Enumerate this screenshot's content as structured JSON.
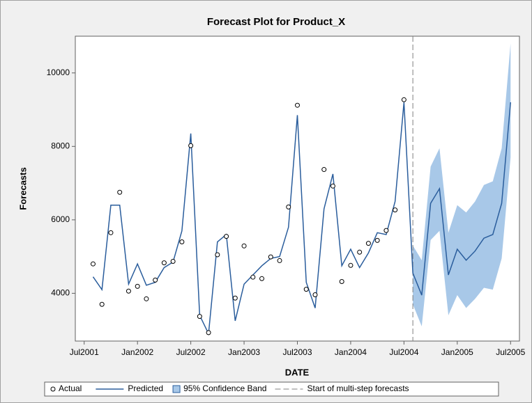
{
  "chart_data": {
    "type": "forecast",
    "title": "Forecast Plot for Product_X",
    "xlabel": "DATE",
    "ylabel": "Forecasts",
    "x": [
      "2001-08",
      "2001-09",
      "2001-10",
      "2001-11",
      "2001-12",
      "2002-01",
      "2002-02",
      "2002-03",
      "2002-04",
      "2002-05",
      "2002-06",
      "2002-07",
      "2002-08",
      "2002-09",
      "2002-10",
      "2002-11",
      "2002-12",
      "2003-01",
      "2003-02",
      "2003-03",
      "2003-04",
      "2003-05",
      "2003-06",
      "2003-07",
      "2003-08",
      "2003-09",
      "2003-10",
      "2003-11",
      "2003-12",
      "2004-01",
      "2004-02",
      "2004-03",
      "2004-04",
      "2004-05",
      "2004-06",
      "2004-07",
      "2004-08",
      "2004-09",
      "2004-10",
      "2004-11",
      "2004-12",
      "2005-01",
      "2005-02",
      "2005-03",
      "2005-04",
      "2005-05",
      "2005-06",
      "2005-07"
    ],
    "series": [
      {
        "name": "Actual",
        "color": "#000000",
        "values": [
          4800,
          3700,
          5650,
          6750,
          4060,
          4190,
          3850,
          4360,
          4830,
          4870,
          5400,
          8020,
          3370,
          2930,
          5050,
          5550,
          3870,
          5290,
          4440,
          4400,
          4990,
          4890,
          6350,
          9120,
          4110,
          3960,
          7370,
          6920,
          4320,
          4760,
          5120,
          5360,
          5440,
          5710,
          6270,
          9270,
          null,
          null,
          null,
          null,
          null,
          null,
          null,
          null,
          null,
          null,
          null,
          null
        ]
      },
      {
        "name": "Predicted",
        "color": "#2a5d9c",
        "values": [
          4450,
          4100,
          6400,
          6400,
          4250,
          4800,
          4220,
          4300,
          4700,
          4850,
          5700,
          8350,
          3400,
          2900,
          5400,
          5600,
          3250,
          4250,
          4500,
          4750,
          4950,
          5000,
          5800,
          8850,
          4300,
          3600,
          6300,
          7250,
          4750,
          5200,
          4700,
          5100,
          5650,
          5600,
          6500,
          9200,
          4550,
          3950,
          6450,
          6850,
          4500,
          5200,
          4900,
          5150,
          5500,
          5600,
          6450,
          9200
        ]
      },
      {
        "name": "95% Confidence Band",
        "color": "#a8c8e8",
        "lower": [
          null,
          null,
          null,
          null,
          null,
          null,
          null,
          null,
          null,
          null,
          null,
          null,
          null,
          null,
          null,
          null,
          null,
          null,
          null,
          null,
          null,
          null,
          null,
          null,
          null,
          null,
          null,
          null,
          null,
          null,
          null,
          null,
          null,
          null,
          null,
          null,
          3700,
          3100,
          5450,
          5700,
          3400,
          3950,
          3600,
          3850,
          4150,
          4100,
          4950,
          7700
        ],
        "upper": [
          null,
          null,
          null,
          null,
          null,
          null,
          null,
          null,
          null,
          null,
          null,
          null,
          null,
          null,
          null,
          null,
          null,
          null,
          null,
          null,
          null,
          null,
          null,
          null,
          null,
          null,
          null,
          null,
          null,
          null,
          null,
          null,
          null,
          null,
          null,
          null,
          5300,
          4900,
          7450,
          7950,
          5650,
          6400,
          6200,
          6500,
          6950,
          7050,
          7950,
          10800
        ]
      }
    ],
    "vline": {
      "name": "Start of multi-step forecasts",
      "x": "2004-08",
      "color": "#808080"
    },
    "xlim": [
      "2001-06",
      "2005-08"
    ],
    "xticks": [
      {
        "value": "2001-07",
        "label": "Jul2001"
      },
      {
        "value": "2002-01",
        "label": "Jan2002"
      },
      {
        "value": "2002-07",
        "label": "Jul2002"
      },
      {
        "value": "2003-01",
        "label": "Jan2003"
      },
      {
        "value": "2003-07",
        "label": "Jul2003"
      },
      {
        "value": "2004-01",
        "label": "Jan2004"
      },
      {
        "value": "2004-07",
        "label": "Jul2004"
      },
      {
        "value": "2005-01",
        "label": "Jan2005"
      },
      {
        "value": "2005-07",
        "label": "Jul2005"
      }
    ],
    "ylim": [
      2700,
      11000
    ],
    "yticks": [
      4000,
      6000,
      8000,
      10000
    ],
    "grid": false
  }
}
